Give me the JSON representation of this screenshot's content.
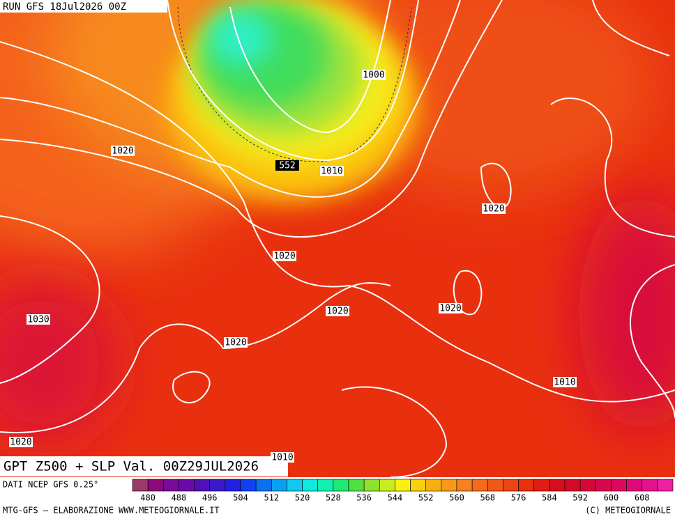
{
  "header": {
    "run": "RUN GFS 18Jul2026 00Z"
  },
  "map": {
    "contour_labels": [
      "1000",
      "552",
      "1010",
      "1020",
      "1020",
      "1020",
      "1020",
      "1020",
      "1020",
      "1030",
      "1010",
      "1020",
      "1010"
    ]
  },
  "footer": {
    "title": "GPT Z500 + SLP Val. 00Z29JUL2026",
    "source": "DATI NCEP GFS 0.25°",
    "credit": "MTG-GFS — ELABORAZIONE WWW.METEOGIORNALE.IT",
    "copyright": "(C) METEOGIORNALE"
  },
  "legend": {
    "labels": [
      480,
      488,
      496,
      504,
      512,
      520,
      528,
      536,
      544,
      552,
      560,
      568,
      576,
      584,
      592,
      600,
      608
    ]
  }
}
